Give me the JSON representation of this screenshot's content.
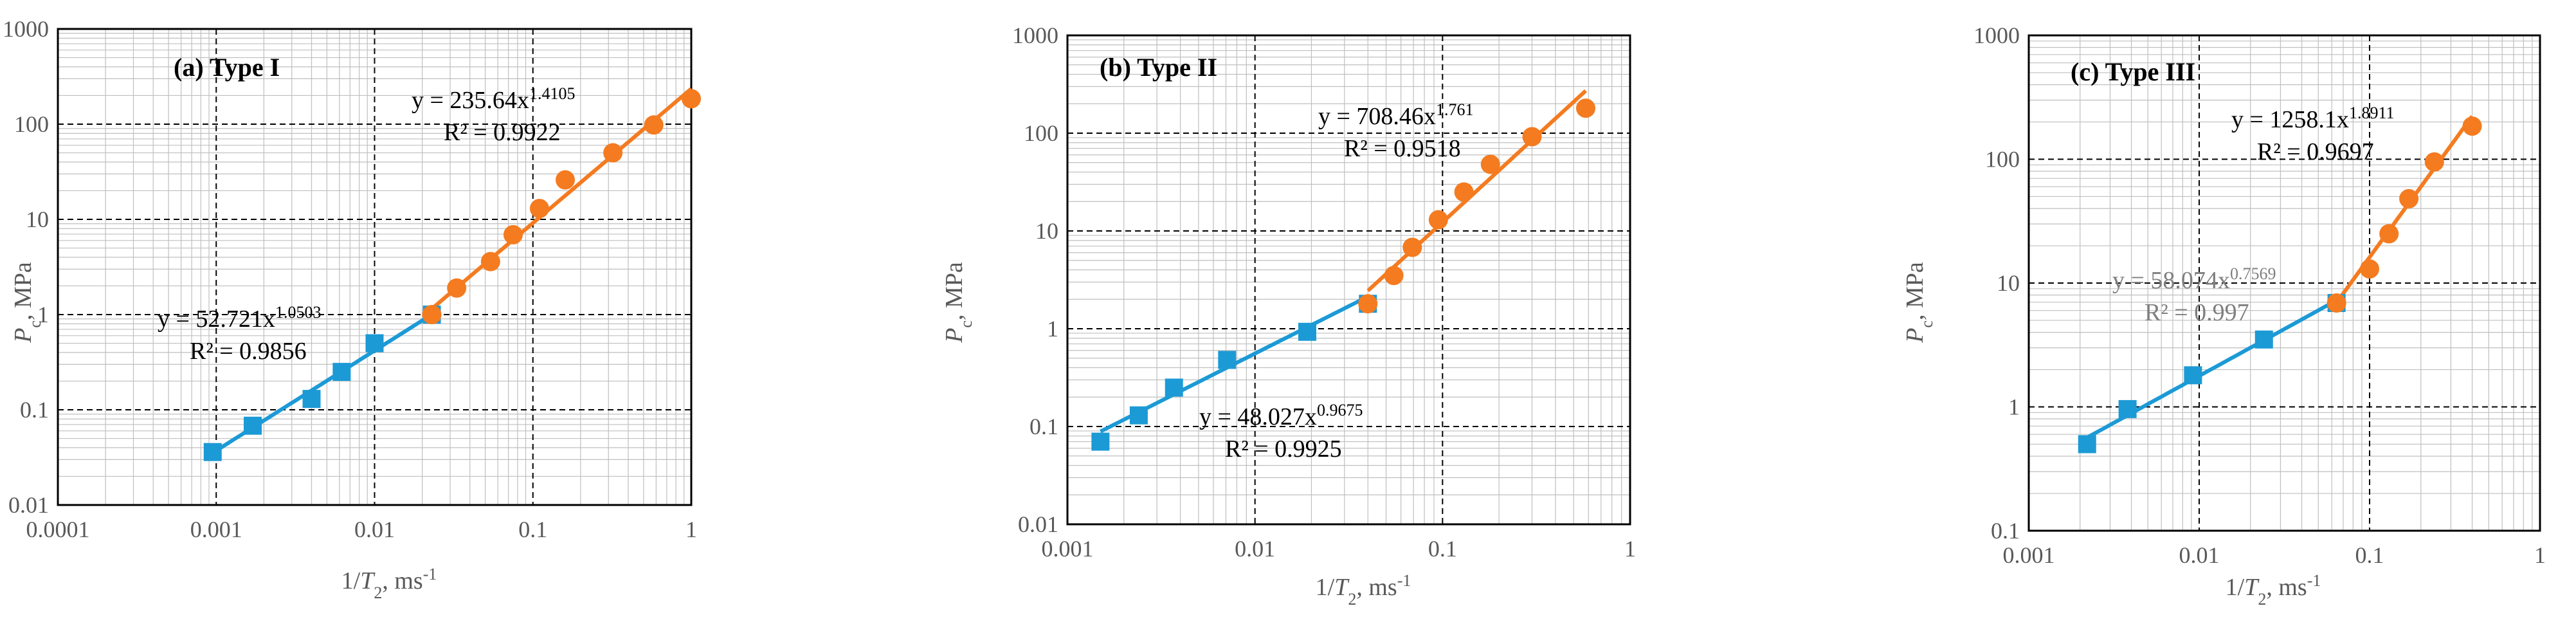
{
  "figure": {
    "ylabel_sub": "c",
    "xlabel_sub": "2"
  },
  "colors": {
    "blue": "#1C9AD6",
    "orange": "#F47B20",
    "axis": "#000000",
    "grid_major": "#000000",
    "grid_minor": "#BFBFBF",
    "tick_label": "#595959"
  },
  "chart_data": [
    {
      "type": "scatter",
      "title": "(a) Type I",
      "xlabel": "1/T2, ms-1",
      "ylabel": "Pc, MPa",
      "x_scale": "log",
      "y_scale": "log",
      "xlim": [
        0.0001,
        1
      ],
      "ylim": [
        0.01,
        1000
      ],
      "x_ticks": [
        "0.0001",
        "0.001",
        "0.01",
        "0.1",
        "1"
      ],
      "y_ticks": [
        "0.01",
        "0.1",
        "1",
        "10",
        "100",
        "1000"
      ],
      "grid": true,
      "series": [
        {
          "name": "blue",
          "marker": "square",
          "color": "#1C9AD6",
          "x": [
            0.00095,
            0.0017,
            0.004,
            0.0062,
            0.01,
            0.023
          ],
          "y": [
            0.036,
            0.068,
            0.13,
            0.25,
            0.5,
            1.0
          ]
        },
        {
          "name": "orange",
          "marker": "circle",
          "color": "#F47B20",
          "x": [
            0.023,
            0.033,
            0.054,
            0.075,
            0.11,
            0.16,
            0.32,
            0.58,
            1.0
          ],
          "y": [
            1.0,
            1.9,
            3.6,
            6.9,
            13,
            26,
            50,
            98,
            185
          ]
        }
      ],
      "fits": [
        {
          "series": "blue",
          "a": 52.721,
          "b": 1.0503,
          "x_range": [
            0.00095,
            0.023
          ],
          "equation_prefix": "y = 52.721x",
          "exponent": "1.0503",
          "r2": "R² = 0.9856"
        },
        {
          "series": "orange",
          "a": 235.64,
          "b": 1.4105,
          "x_range": [
            0.023,
            1.0
          ],
          "equation_prefix": "y = 235.64x",
          "exponent": "1.4105",
          "r2": "R² = 0.9922"
        }
      ]
    },
    {
      "type": "scatter",
      "title": "(b) Type II",
      "xlabel": "1/T2, ms-1",
      "ylabel": "Pc, MPa",
      "x_scale": "log",
      "y_scale": "log",
      "xlim": [
        0.001,
        1
      ],
      "ylim": [
        0.01,
        1000
      ],
      "x_ticks": [
        "0.001",
        "0.01",
        "0.1",
        "1"
      ],
      "y_ticks": [
        "0.01",
        "0.1",
        "1",
        "10",
        "100",
        "1000"
      ],
      "grid": true,
      "series": [
        {
          "name": "blue",
          "marker": "square",
          "color": "#1C9AD6",
          "x": [
            0.0015,
            0.0024,
            0.0037,
            0.0071,
            0.019,
            0.04
          ],
          "y": [
            0.07,
            0.13,
            0.25,
            0.48,
            0.93,
            1.8
          ]
        },
        {
          "name": "orange",
          "marker": "circle",
          "color": "#F47B20",
          "x": [
            0.04,
            0.055,
            0.069,
            0.095,
            0.13,
            0.18,
            0.3,
            0.58
          ],
          "y": [
            1.8,
            3.5,
            6.8,
            13,
            25,
            48,
            92,
            180
          ]
        }
      ],
      "fits": [
        {
          "series": "blue",
          "a": 48.027,
          "b": 0.9675,
          "x_range": [
            0.0015,
            0.04
          ],
          "equation_prefix": "y = 48.027x",
          "exponent": "0.9675",
          "r2": "R² = 0.9925"
        },
        {
          "series": "orange",
          "a": 708.46,
          "b": 1.761,
          "x_range": [
            0.04,
            0.58
          ],
          "equation_prefix": "y = 708.46x",
          "exponent": "1.761",
          "r2": "R² = 0.9518"
        }
      ]
    },
    {
      "type": "scatter",
      "title": "(c) Type III",
      "xlabel": "1/T2, ms-1",
      "ylabel": "Pc, MPa",
      "x_scale": "log",
      "y_scale": "log",
      "xlim": [
        0.001,
        1
      ],
      "ylim": [
        0.1,
        1000
      ],
      "x_ticks": [
        "0.001",
        "0.01",
        "0.1",
        "1"
      ],
      "y_ticks": [
        "0.1",
        "1",
        "10",
        "100",
        "1000"
      ],
      "grid": true,
      "series": [
        {
          "name": "blue",
          "marker": "square",
          "color": "#1C9AD6",
          "x": [
            0.0022,
            0.0038,
            0.0092,
            0.024,
            0.064
          ],
          "y": [
            0.5,
            0.96,
            1.8,
            3.5,
            6.9
          ]
        },
        {
          "name": "orange",
          "marker": "circle",
          "color": "#F47B20",
          "x": [
            0.064,
            0.1,
            0.13,
            0.17,
            0.24,
            0.4
          ],
          "y": [
            6.9,
            13,
            25,
            48,
            95,
            185
          ]
        }
      ],
      "fits": [
        {
          "series": "blue",
          "a": 58.074,
          "b": 0.7569,
          "x_range": [
            0.0022,
            0.064
          ],
          "equation_prefix": "y = 58.074x",
          "exponent": "0.7569",
          "r2": "R² = 0.997"
        },
        {
          "series": "orange",
          "a": 1258.1,
          "b": 1.8911,
          "x_range": [
            0.064,
            0.4
          ],
          "equation_prefix": "y = 1258.1x",
          "exponent": "1.8911",
          "r2": "R² = 0.9697"
        }
      ]
    }
  ]
}
